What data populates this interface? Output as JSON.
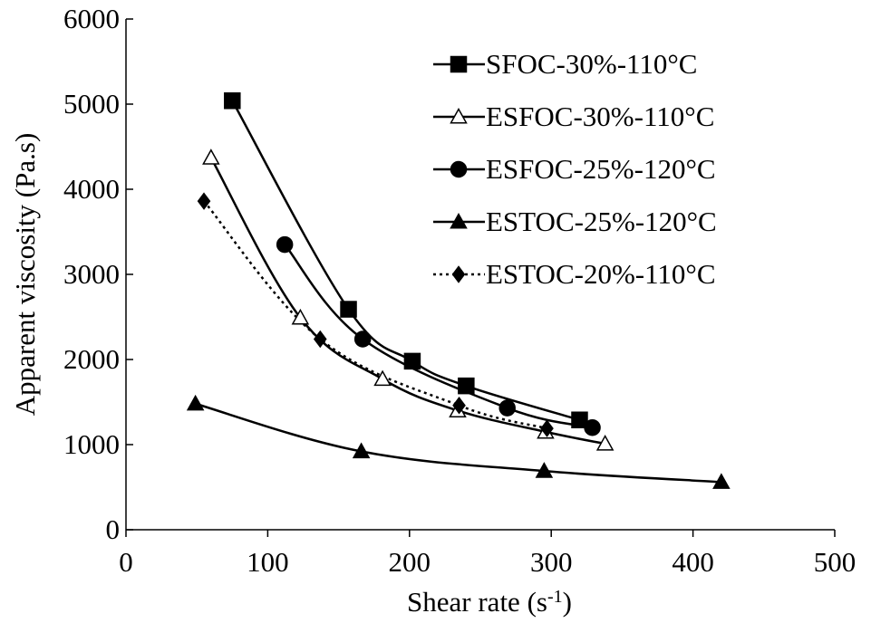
{
  "chart_data": {
    "type": "line",
    "xlabel": "Shear rate (s",
    "xlabel_sup": "-1",
    "xlabel_end": ")",
    "ylabel": "Apparent viscosity (Pa.s)",
    "xlim": [
      0,
      500
    ],
    "ylim": [
      0,
      6000
    ],
    "x_ticks": [
      "0",
      "100",
      "200",
      "300",
      "400",
      "500"
    ],
    "y_ticks": [
      "0",
      "1000",
      "2000",
      "3000",
      "4000",
      "5000",
      "6000"
    ],
    "grid": false,
    "legend_position": "top-right",
    "series": [
      {
        "name": "SFOC-30%-110°C",
        "marker": "square",
        "filled": true,
        "line": "solid",
        "color": "#000000",
        "x": [
          75,
          157,
          202,
          240,
          320
        ],
        "y": [
          5040,
          2590,
          1980,
          1690,
          1290
        ]
      },
      {
        "name": "ESFOC-30%-110°C",
        "marker": "triangle",
        "filled": false,
        "line": "solid",
        "color": "#000000",
        "x": [
          60,
          123,
          181,
          234,
          296,
          338
        ],
        "y": [
          4370,
          2490,
          1770,
          1400,
          1150,
          1010
        ]
      },
      {
        "name": "ESFOC-25%-120°C",
        "marker": "circle",
        "filled": true,
        "line": "solid",
        "color": "#000000",
        "x": [
          112,
          167,
          269,
          329
        ],
        "y": [
          3350,
          2240,
          1430,
          1200
        ]
      },
      {
        "name": "ESTOC-25%-120°C",
        "marker": "triangle",
        "filled": true,
        "line": "solid",
        "color": "#000000",
        "x": [
          49,
          166,
          295,
          420
        ],
        "y": [
          1480,
          920,
          690,
          560
        ]
      },
      {
        "name": "ESTOC-20%-110°C",
        "marker": "diamond",
        "filled": true,
        "line": "dotted",
        "color": "#000000",
        "x": [
          55,
          137,
          235,
          297
        ],
        "y": [
          3860,
          2240,
          1460,
          1190
        ]
      }
    ]
  }
}
